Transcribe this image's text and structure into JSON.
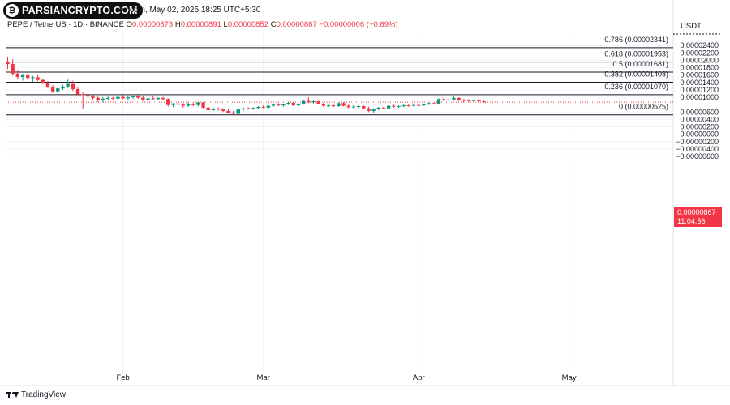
{
  "brand": {
    "logo_text": "PARSIANCRYPTO.COM",
    "logo_glyph": "₿"
  },
  "header": {
    "title_line": "ew.com, May 02, 2025 18:25 UTC+5:30",
    "symbol": "PEPE / TetherUS · 1D · BINANCE",
    "o_label": "O",
    "o_value": "0.00000873",
    "h_label": "H",
    "h_value": "0.00000891",
    "l_label": "L",
    "l_value": "0.00000852",
    "c_label": "C",
    "c_value": "0.00000867",
    "change": "−0.00000006 (−0.69%)"
  },
  "axis_unit": "USDT",
  "last_price": {
    "value": "0.00000867",
    "countdown": "11:04:36"
  },
  "footer": {
    "brand": "TradingView"
  },
  "colors": {
    "up": "#089981",
    "down": "#f23645",
    "fib_line": "#131722",
    "grid": "#f0f3fa",
    "price_line": "#f23645"
  },
  "chart_data": {
    "type": "candlestick",
    "y_unit": "USDT",
    "ylim": [
      -6.5e-06,
      2.8e-06
    ],
    "y_ticks": [
      {
        "value": 2.4e-06,
        "label": "0.00002400"
      },
      {
        "value": 2.2e-06,
        "label": "0.00002200"
      },
      {
        "value": 2e-06,
        "label": "0.00002000"
      },
      {
        "value": 1.8e-06,
        "label": "0.00001800"
      },
      {
        "value": 1.6e-06,
        "label": "0.00001600"
      },
      {
        "value": 1.4e-06,
        "label": "0.00001400"
      },
      {
        "value": 1.2e-06,
        "label": "0.00001200"
      },
      {
        "value": 1e-06,
        "label": "0.00001000"
      },
      {
        "value": 6e-07,
        "label": "0.00000600"
      },
      {
        "value": 4e-07,
        "label": "0.00000400"
      },
      {
        "value": 2e-07,
        "label": "0.00000200"
      },
      {
        "value": -0.0,
        "label": "−0.00000000"
      },
      {
        "value": -2e-07,
        "label": "−0.00000200"
      },
      {
        "value": -4e-07,
        "label": "−0.00000400"
      },
      {
        "value": -6e-07,
        "label": "−0.00000600"
      }
    ],
    "x_labels": [
      {
        "index": 23,
        "label": "Feb"
      },
      {
        "index": 51,
        "label": "Mar"
      },
      {
        "index": 82,
        "label": "Apr"
      },
      {
        "index": 112,
        "label": "May"
      }
    ],
    "fib_levels": [
      {
        "ratio_label": "0.786 (0.00002341)",
        "value": 2.341e-06
      },
      {
        "ratio_label": "0.618 (0.00001953)",
        "value": 1.953e-06
      },
      {
        "ratio_label": "0.5 (0.00001681)",
        "value": 1.681e-06
      },
      {
        "ratio_label": "0.382 (0.00001408)",
        "value": 1.408e-06
      },
      {
        "ratio_label": "0.236 (0.00001070)",
        "value": 1.07e-06
      },
      {
        "ratio_label": "0 (0.00000525)",
        "value": 5.25e-07
      }
    ],
    "last_close": 8.67e-07,
    "candles": [
      [
        1.95e-06,
        2.1e-06,
        1.76e-06,
        1.9e-06
      ],
      [
        1.9e-06,
        2.03e-06,
        1.58e-06,
        1.64e-06
      ],
      [
        1.64e-06,
        1.72e-06,
        1.5e-06,
        1.55e-06
      ],
      [
        1.55e-06,
        1.64e-06,
        1.45e-06,
        1.6e-06
      ],
      [
        1.6e-06,
        1.66e-06,
        1.48e-06,
        1.52e-06
      ],
      [
        1.52e-06,
        1.58e-06,
        1.42e-06,
        1.54e-06
      ],
      [
        1.54e-06,
        1.62e-06,
        1.44e-06,
        1.47e-06
      ],
      [
        1.47e-06,
        1.5e-06,
        1.36e-06,
        1.39e-06
      ],
      [
        1.39e-06,
        1.44e-06,
        1.25e-06,
        1.28e-06
      ],
      [
        1.28e-06,
        1.33e-06,
        1.12e-06,
        1.16e-06
      ],
      [
        1.16e-06,
        1.28e-06,
        1.12e-06,
        1.24e-06
      ],
      [
        1.24e-06,
        1.34e-06,
        1.2e-06,
        1.29e-06
      ],
      [
        1.29e-06,
        1.48e-06,
        1.25e-06,
        1.36e-06
      ],
      [
        1.36e-06,
        1.45e-06,
        1.17e-06,
        1.22e-06
      ],
      [
        1.22e-06,
        1.27e-06,
        1.05e-06,
        1.08e-06
      ],
      [
        1.08e-06,
        1.13e-06,
        6.9e-07,
        1.06e-06
      ],
      [
        1.06e-06,
        1.1e-06,
        9.8e-07,
        1.02e-06
      ],
      [
        1.02e-06,
        1.06e-06,
        9.4e-07,
        9.8e-07
      ],
      [
        9.8e-07,
        1.02e-06,
        8.8e-07,
        9.2e-07
      ],
      [
        9.2e-07,
        1e-06,
        8.6e-07,
        9.6e-07
      ],
      [
        9.6e-07,
        1.02e-06,
        9.2e-07,
        9.8e-07
      ],
      [
        9.8e-07,
        1.01e-06,
        9.4e-07,
        9.6e-07
      ],
      [
        9.6e-07,
        1.05e-06,
        9.3e-07,
        1.01e-06
      ],
      [
        1.01e-06,
        1.06e-06,
        9.5e-07,
        9.7e-07
      ],
      [
        9.7e-07,
        1.04e-06,
        9.4e-07,
        1e-06
      ],
      [
        1e-06,
        1.05e-06,
        9.6e-07,
        1.03e-06
      ],
      [
        1.03e-06,
        1.06e-06,
        9.6e-07,
        9.9e-07
      ],
      [
        9.9e-07,
        1.03e-06,
        9e-07,
        9.3e-07
      ],
      [
        9.3e-07,
        1e-06,
        9.1e-07,
        9.7e-07
      ],
      [
        9.7e-07,
        1.04e-06,
        9.3e-07,
        9.5e-07
      ],
      [
        9.5e-07,
        1e-06,
        9.2e-07,
        9.8e-07
      ],
      [
        9.8e-07,
        1.01e-06,
        9.3e-07,
        9.5e-07
      ],
      [
        9.5e-07,
        9.7e-07,
        7.5e-07,
        7.9e-07
      ],
      [
        7.9e-07,
        8.5e-07,
        7.3e-07,
        8.3e-07
      ],
      [
        8.3e-07,
        8.7e-07,
        7.7e-07,
        8e-07
      ],
      [
        8e-07,
        8.4e-07,
        7.2e-07,
        7.7e-07
      ],
      [
        7.7e-07,
        8.6e-07,
        7.4e-07,
        8.1e-07
      ],
      [
        8.1e-07,
        8.5e-07,
        7.6e-07,
        7.9e-07
      ],
      [
        7.9e-07,
        8.7e-07,
        7.5e-07,
        8.6e-07
      ],
      [
        8.6e-07,
        8.8e-07,
        6.8e-07,
        7.2e-07
      ],
      [
        7.2e-07,
        7.4e-07,
        6.2e-07,
        6.5e-07
      ],
      [
        6.5e-07,
        7.2e-07,
        6.2e-07,
        6.9e-07
      ],
      [
        6.9e-07,
        7.3e-07,
        6.4e-07,
        6.7e-07
      ],
      [
        6.7e-07,
        7e-07,
        6e-07,
        6.3e-07
      ],
      [
        6.3e-07,
        6.8e-07,
        5.6e-07,
        5.8e-07
      ],
      [
        5.8e-07,
        6.3e-07,
        5.1e-07,
        5.5e-07
      ],
      [
        5.5e-07,
        7e-07,
        5.3e-07,
        6.7e-07
      ],
      [
        6.7e-07,
        7.2e-07,
        6.2e-07,
        7e-07
      ],
      [
        7e-07,
        7.3e-07,
        6.6e-07,
        6.8e-07
      ],
      [
        6.8e-07,
        7.3e-07,
        6.6e-07,
        7.1e-07
      ],
      [
        7.1e-07,
        7.6e-07,
        6.8e-07,
        7.4e-07
      ],
      [
        7.4e-07,
        7.8e-07,
        7e-07,
        7.2e-07
      ],
      [
        7.2e-07,
        7.9e-07,
        6.8e-07,
        7.7e-07
      ],
      [
        7.7e-07,
        8.2e-07,
        7.4e-07,
        8e-07
      ],
      [
        8e-07,
        8.4e-07,
        7.6e-07,
        7.8e-07
      ],
      [
        7.8e-07,
        8.3e-07,
        7.4e-07,
        8.1e-07
      ],
      [
        8.1e-07,
        8.8e-07,
        7.9e-07,
        8.5e-07
      ],
      [
        8.5e-07,
        8.7e-07,
        7.6e-07,
        7.8e-07
      ],
      [
        7.8e-07,
        8.4e-07,
        7.5e-07,
        8.2e-07
      ],
      [
        8.2e-07,
        9.3e-07,
        8e-07,
        9e-07
      ],
      [
        9e-07,
        1e-06,
        8.4e-07,
        8.7e-07
      ],
      [
        8.7e-07,
        9.2e-07,
        8.3e-07,
        8.9e-07
      ],
      [
        8.9e-07,
        9.1e-07,
        8e-07,
        8.2e-07
      ],
      [
        8.2e-07,
        8.5e-07,
        7.4e-07,
        7.7e-07
      ],
      [
        7.7e-07,
        8.1e-07,
        7.3e-07,
        7.8e-07
      ],
      [
        7.8e-07,
        8.2e-07,
        7.4e-07,
        7.6e-07
      ],
      [
        7.6e-07,
        8.6e-07,
        7.4e-07,
        8.4e-07
      ],
      [
        8.4e-07,
        8.7e-07,
        7.5e-07,
        7.7e-07
      ],
      [
        7.7e-07,
        8e-07,
        7e-07,
        7.3e-07
      ],
      [
        7.3e-07,
        7.8e-07,
        6.7e-07,
        7.5e-07
      ],
      [
        7.5e-07,
        7.9e-07,
        7e-07,
        7.6e-07
      ],
      [
        7.6e-07,
        7.8e-07,
        6.7e-07,
        7e-07
      ],
      [
        7e-07,
        7.4e-07,
        6e-07,
        6.3e-07
      ],
      [
        6.3e-07,
        7e-07,
        5.8e-07,
        6.7e-07
      ],
      [
        6.7e-07,
        7.4e-07,
        6.5e-07,
        7.2e-07
      ],
      [
        7.2e-07,
        7.5e-07,
        6.8e-07,
        7e-07
      ],
      [
        7e-07,
        7.9e-07,
        6.8e-07,
        7.7e-07
      ],
      [
        7.7e-07,
        8e-07,
        7.2e-07,
        7.5e-07
      ],
      [
        7.5e-07,
        7.8e-07,
        7.1e-07,
        7.6e-07
      ],
      [
        7.6e-07,
        8e-07,
        7.3e-07,
        7.8e-07
      ],
      [
        7.8e-07,
        8.1e-07,
        7.4e-07,
        7.7e-07
      ],
      [
        7.7e-07,
        8e-07,
        7.4e-07,
        7.9e-07
      ],
      [
        7.9e-07,
        8.2e-07,
        7.5e-07,
        7.8e-07
      ],
      [
        7.8e-07,
        8.3e-07,
        7.7e-07,
        8.1e-07
      ],
      [
        8.1e-07,
        8.6e-07,
        7.9e-07,
        8.4e-07
      ],
      [
        8.4e-07,
        8.6e-07,
        8e-07,
        8.2e-07
      ],
      [
        8.2e-07,
        9.7e-07,
        8e-07,
        9.5e-07
      ],
      [
        9.5e-07,
        9.8e-07,
        8.8e-07,
        9.2e-07
      ],
      [
        9.2e-07,
        9.7e-07,
        8.8e-07,
        9.4e-07
      ],
      [
        9.4e-07,
        1.02e-06,
        9.1e-07,
        9.8e-07
      ],
      [
        9.8e-07,
        1e-06,
        9e-07,
        9.3e-07
      ],
      [
        9.3e-07,
        9.6e-07,
        8.6e-07,
        9.2e-07
      ],
      [
        9.2e-07,
        9.5e-07,
        8.8e-07,
        9.1e-07
      ],
      [
        9.1e-07,
        9.4e-07,
        8.8e-07,
        9.2e-07
      ],
      [
        9.2e-07,
        9.3e-07,
        8.7e-07,
        8.9e-07
      ],
      [
        8.9e-07,
        9.1e-07,
        8.5e-07,
        8.7e-07
      ]
    ]
  }
}
